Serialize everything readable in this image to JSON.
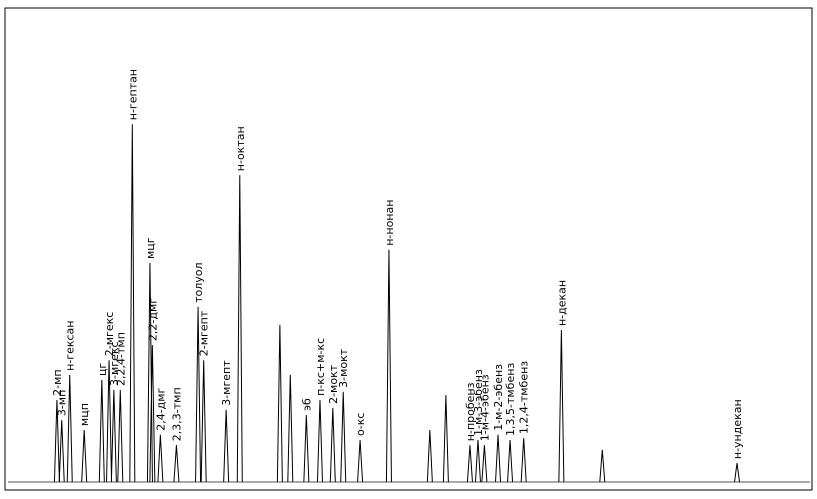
{
  "chart_data": {
    "type": "chromatogram",
    "color": "#000000",
    "xlim": [
      0,
      100
    ],
    "ylim": [
      0,
      100
    ],
    "peaks": [
      {
        "x": 6.1,
        "height": 17.4,
        "label": "2-мп"
      },
      {
        "x": 6.7,
        "height": 13.1,
        "label": "3-мп"
      },
      {
        "x": 7.7,
        "height": 22.7,
        "label": "н-гексан"
      },
      {
        "x": 9.5,
        "height": 11.0,
        "label": "мцп"
      },
      {
        "x": 11.7,
        "height": 21.6,
        "label": "цг"
      },
      {
        "x": 12.6,
        "height": 25.8,
        "label": "2-мгекс"
      },
      {
        "x": 13.2,
        "height": 19.5,
        "label": "3-мгекс"
      },
      {
        "x": 14.0,
        "height": 19.5,
        "label": "2,2,4-тмп"
      },
      {
        "x": 15.5,
        "height": 75.8,
        "label": "н-гептан"
      },
      {
        "x": 17.7,
        "height": 46.4,
        "label": "мцг"
      },
      {
        "x": 18.0,
        "height": 29.0,
        "label": "2,2-дмг"
      },
      {
        "x": 19.0,
        "height": 10.0,
        "label": "2,4-дмг"
      },
      {
        "x": 21.0,
        "height": 7.8,
        "label": "2,3,3-тмп"
      },
      {
        "x": 23.7,
        "height": 37.1,
        "label": "толуол"
      },
      {
        "x": 24.4,
        "height": 25.8,
        "label": "2-мгепт"
      },
      {
        "x": 27.2,
        "height": 15.3,
        "label": "3-мгепт"
      },
      {
        "x": 28.9,
        "height": 65.0,
        "label": "н-октан"
      },
      {
        "x": 33.9,
        "height": 33.3
      },
      {
        "x": 35.2,
        "height": 22.7
      },
      {
        "x": 37.2,
        "height": 14.2,
        "label": "эб"
      },
      {
        "x": 38.9,
        "height": 17.4,
        "label": "п-кс+м-кс"
      },
      {
        "x": 40.5,
        "height": 15.7,
        "label": "2-мокт"
      },
      {
        "x": 41.8,
        "height": 19.1,
        "label": "3-мокт"
      },
      {
        "x": 43.9,
        "height": 8.9,
        "label": "о-кс"
      },
      {
        "x": 47.5,
        "height": 49.2,
        "label": "н-нонан"
      },
      {
        "x": 52.6,
        "height": 11.0
      },
      {
        "x": 54.6,
        "height": 18.4
      },
      {
        "x": 57.6,
        "height": 7.8,
        "label": "н-пробенз"
      },
      {
        "x": 58.6,
        "height": 8.9,
        "label": "1-м-3-эбенз"
      },
      {
        "x": 59.4,
        "height": 7.8,
        "label": "1-м-4-эбенз"
      },
      {
        "x": 61.1,
        "height": 10.0,
        "label": "1-м-2-эбенз"
      },
      {
        "x": 62.6,
        "height": 8.9,
        "label": "1,3,5-тмбенз"
      },
      {
        "x": 64.3,
        "height": 9.3,
        "label": "1,2,4-тмбенз"
      },
      {
        "x": 69.0,
        "height": 32.2,
        "label": "н-декан"
      },
      {
        "x": 74.1,
        "height": 6.8
      },
      {
        "x": 90.9,
        "height": 4.0,
        "label": "н-ундекан"
      }
    ]
  }
}
